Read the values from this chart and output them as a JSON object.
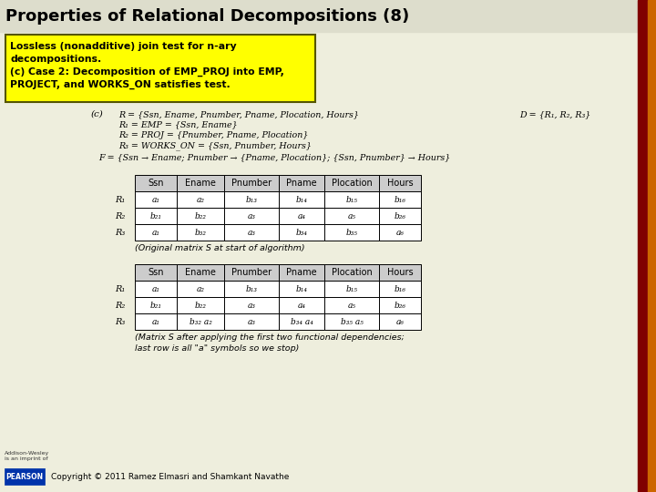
{
  "title": "Properties of Relational Decompositions (8)",
  "title_color": "#000000",
  "title_fontsize": 13,
  "bg_color": "#eeeedd",
  "highlight_box_color": "#ffff00",
  "highlight_text": [
    "Lossless (nonadditive) join test for n-ary",
    "decompositions.",
    "(c) Case 2: Decomposition of EMP_PROJ into EMP,",
    "PROJECT, and WORKS_ON satisfies test."
  ],
  "c_label": "(c)",
  "r_def": "R = {Ssn, Ename, Pnumber, Pname, Plocation, Hours}",
  "r1_def": "R₁ = EMP = {Ssn, Ename}",
  "r2_def": "R₂ = PROJ = {Pnumber, Pname, Plocation}",
  "r3_def": "R₃ = WORKS_ON = {Ssn, Pnumber, Hours}",
  "d_def": "D = {R₁, R₂, R₃}",
  "f_def": "F = {Ssn → Ename; Pnumber → {Pname, Plocation}; {Ssn, Pnumber} → Hours}",
  "table1_caption": "(Original matrix S at start of algorithm)",
  "table2_caption_line1": "(Matrix S after applying the first two functional dependencies;",
  "table2_caption_line2": "last row is all \"a\" symbols so we stop)",
  "col_headers": [
    "Ssn",
    "Ename",
    "Pnumber",
    "Pname",
    "Plocation",
    "Hours"
  ],
  "row_labels": [
    "R₁",
    "R₂",
    "R₃"
  ],
  "table1_data": [
    [
      "a₁",
      "a₂",
      "b₁₃",
      "b₁₄",
      "b₁₅",
      "b₁₆"
    ],
    [
      "b₂₁",
      "b₂₂",
      "a₃",
      "a₄",
      "a₅",
      "b₂₆"
    ],
    [
      "a₁",
      "b₃₂",
      "a₃",
      "b₃₄",
      "b₃₅",
      "a₆"
    ]
  ],
  "table2_data": [
    [
      "a₁",
      "a₂",
      "b₁₃",
      "b₁₄",
      "b₁₅",
      "b₁₆"
    ],
    [
      "b₂₁",
      "b₂₂",
      "a₃",
      "a₄",
      "a₅",
      "b₂₆"
    ],
    [
      "a₁",
      "b₃₂ a₂",
      "a₃",
      "b₃₄ a₄",
      "b₃₅ a₅",
      "a₆"
    ]
  ],
  "footer_text": "Copyright © 2011 Ramez Elmasri and Shamkant Navathe",
  "right_bar_color1": "#800000",
  "right_bar_color2": "#cc6600",
  "table_header_bg": "#cccccc",
  "addison_line1": "Addison-Wesley",
  "addison_line2": "is an imprint of"
}
